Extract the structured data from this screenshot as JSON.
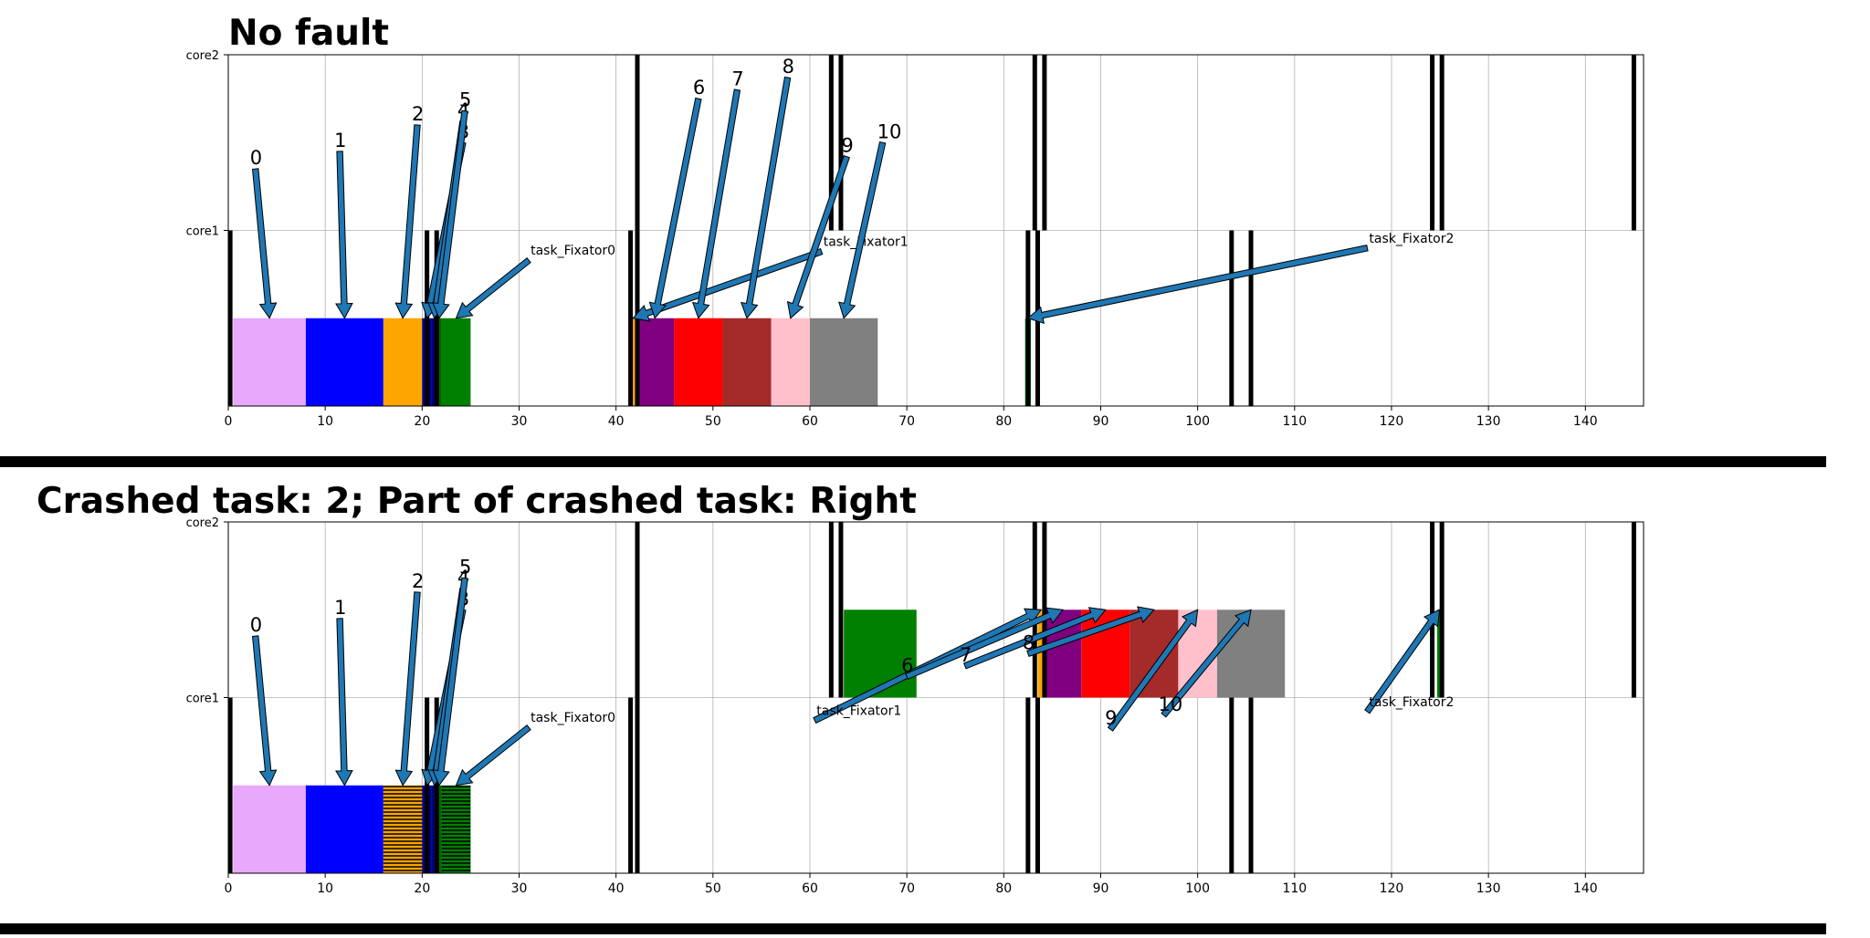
{
  "panels": [
    {
      "id": "top",
      "title": "No fault",
      "core_labels": [
        "core2",
        "core1"
      ],
      "xticks": [
        0,
        10,
        20,
        30,
        40,
        50,
        60,
        70,
        80,
        90,
        100,
        110,
        120,
        130,
        140
      ],
      "xlim": [
        0,
        146
      ],
      "tasks": [
        {
          "id": "0",
          "core": "core1",
          "start": 0.5,
          "end": 8,
          "color": "#e8a8fc",
          "hatched": false,
          "label_x": 2.8,
          "label_y": 1.35
        },
        {
          "id": "1",
          "core": "core1",
          "start": 8,
          "end": 16,
          "color": "#0000ff",
          "hatched": false,
          "label_x": 11.5,
          "label_y": 1.45
        },
        {
          "id": "2",
          "core": "core1",
          "start": 16,
          "end": 20,
          "color": "#ffa500",
          "hatched": false,
          "label_x": 19.5,
          "label_y": 1.6
        },
        {
          "id": "3",
          "core": "core1",
          "start": 20,
          "end": 21,
          "color": "#00008b",
          "hatched": false,
          "label_x": 24.2,
          "label_y": 1.5
        },
        {
          "id": "4",
          "core": "core1",
          "start": 21,
          "end": 21.5,
          "color": "#000080",
          "hatched": false,
          "label_x": 24.2,
          "label_y": 1.62
        },
        {
          "id": "5",
          "core": "core1",
          "start": 21.5,
          "end": 22,
          "color": "#006400",
          "hatched": false,
          "label_x": 24.4,
          "label_y": 1.68
        },
        {
          "id": "task_Fixator0",
          "core": "core1",
          "start": 22,
          "end": 25,
          "color": "#008000",
          "hatched": false,
          "label_x": 31,
          "label_y": 0.83,
          "small": true
        },
        {
          "id": "task_Fixator1_a",
          "core": "core1",
          "start": 41.5,
          "end": 42,
          "color": "#ffa500",
          "hatched": false,
          "label_x": 61.2,
          "label_y": 0.88,
          "small": true,
          "display": "task_Fixator1"
        },
        {
          "id": "6",
          "core": "core1",
          "start": 42,
          "end": 46,
          "color": "#800080",
          "hatched": false,
          "label_x": 48.5,
          "label_y": 1.75
        },
        {
          "id": "7",
          "core": "core1",
          "start": 46,
          "end": 51,
          "color": "#ff0000",
          "hatched": false,
          "label_x": 52.5,
          "label_y": 1.8
        },
        {
          "id": "8",
          "core": "core1",
          "start": 51,
          "end": 56,
          "color": "#a52a2a",
          "hatched": false,
          "label_x": 57.7,
          "label_y": 1.87
        },
        {
          "id": "9",
          "core": "core1",
          "start": 56,
          "end": 60,
          "color": "#ffc0cb",
          "hatched": false,
          "label_x": 63.8,
          "label_y": 1.42
        },
        {
          "id": "10",
          "core": "core1",
          "start": 60,
          "end": 67,
          "color": "#808080",
          "hatched": false,
          "label_x": 67.5,
          "label_y": 1.5
        },
        {
          "id": "task_Fixator2",
          "core": "core1",
          "start": 82.2,
          "end": 82.8,
          "color": "#008000",
          "hatched": false,
          "label_x": 117.5,
          "label_y": 0.9,
          "small": true
        }
      ],
      "vlines": [
        {
          "core": "core1",
          "x": [
            0.2,
            20.5,
            21.5,
            41.5,
            42.2,
            82.5,
            83.5,
            103.5,
            105.5
          ]
        },
        {
          "core": "core2",
          "x": [
            42.2,
            62.2,
            63.2,
            83.2,
            84.2,
            124.2,
            125.2,
            145
          ]
        }
      ]
    },
    {
      "id": "bottom",
      "title": "Crashed task: 2; Part of crashed task: Right",
      "core_labels": [
        "core2",
        "core1"
      ],
      "xticks": [
        0,
        10,
        20,
        30,
        40,
        50,
        60,
        70,
        80,
        90,
        100,
        110,
        120,
        130,
        140
      ],
      "xlim": [
        0,
        146
      ],
      "tasks": [
        {
          "id": "0",
          "core": "core1",
          "start": 0.5,
          "end": 8,
          "color": "#e8a8fc",
          "hatched": false,
          "label_x": 2.8,
          "label_y": 1.35
        },
        {
          "id": "1",
          "core": "core1",
          "start": 8,
          "end": 16,
          "color": "#0000ff",
          "hatched": false,
          "label_x": 11.5,
          "label_y": 1.45
        },
        {
          "id": "2",
          "core": "core1",
          "start": 16,
          "end": 20,
          "color": "#ffa500",
          "hatched": true,
          "label_x": 19.5,
          "label_y": 1.6
        },
        {
          "id": "3",
          "core": "core1",
          "start": 20,
          "end": 21,
          "color": "#00008b",
          "hatched": false,
          "label_x": 24.2,
          "label_y": 1.5
        },
        {
          "id": "4",
          "core": "core1",
          "start": 21,
          "end": 21.5,
          "color": "#000080",
          "hatched": false,
          "label_x": 24.2,
          "label_y": 1.62
        },
        {
          "id": "5",
          "core": "core1",
          "start": 21.5,
          "end": 22,
          "color": "#006400",
          "hatched": false,
          "label_x": 24.4,
          "label_y": 1.68
        },
        {
          "id": "task_Fixator0",
          "core": "core1",
          "start": 22,
          "end": 25,
          "color": "#008000",
          "hatched": true,
          "label_x": 31,
          "label_y": 0.83,
          "small": true
        },
        {
          "id": "green_block",
          "core": "core2",
          "start": 63.5,
          "end": 71,
          "color": "#008000",
          "hatched": false
        },
        {
          "id": "task_Fixator1_b",
          "core": "core2",
          "start": 83.5,
          "end": 84.2,
          "color": "#ffa500",
          "hatched": false,
          "label_x": 60.5,
          "label_y": 0.87,
          "small": true,
          "display": "task_Fixator1"
        },
        {
          "id": "6",
          "core": "core2",
          "start": 84.2,
          "end": 88,
          "color": "#800080",
          "hatched": false,
          "label_x": 70,
          "label_y": 1.12
        },
        {
          "id": "7",
          "core": "core2",
          "start": 88,
          "end": 93,
          "color": "#ff0000",
          "hatched": false,
          "label_x": 76,
          "label_y": 1.18
        },
        {
          "id": "8",
          "core": "core2",
          "start": 93,
          "end": 98,
          "color": "#a52a2a",
          "hatched": false,
          "label_x": 82.5,
          "label_y": 1.25
        },
        {
          "id": "9",
          "core": "core2",
          "start": 98,
          "end": 102,
          "color": "#ffc0cb",
          "hatched": false,
          "label_x": 91,
          "label_y": 0.82
        },
        {
          "id": "10",
          "core": "core2",
          "start": 102,
          "end": 109,
          "color": "#808080",
          "hatched": false,
          "label_x": 96.5,
          "label_y": 0.9
        },
        {
          "id": "task_Fixator2",
          "core": "core2",
          "start": 124.7,
          "end": 125.2,
          "color": "#008000",
          "hatched": false,
          "label_x": 117.5,
          "label_y": 0.92,
          "small": true
        }
      ],
      "vlines": [
        {
          "core": "core1",
          "x": [
            0.2,
            20.5,
            21.5,
            41.5,
            42.2,
            82.5,
            83.5,
            103.5,
            105.5
          ]
        },
        {
          "core": "core2",
          "x": [
            42.2,
            62.2,
            63.2,
            83.2,
            84.2,
            124.2,
            125.2,
            145
          ]
        }
      ]
    }
  ],
  "chart_data": {
    "type": "gantt",
    "note_tasks_core1_top": "bars on core1 in top panel",
    "panels": [
      "No fault",
      "Crashed task: 2; Part of crashed task: Right"
    ]
  }
}
